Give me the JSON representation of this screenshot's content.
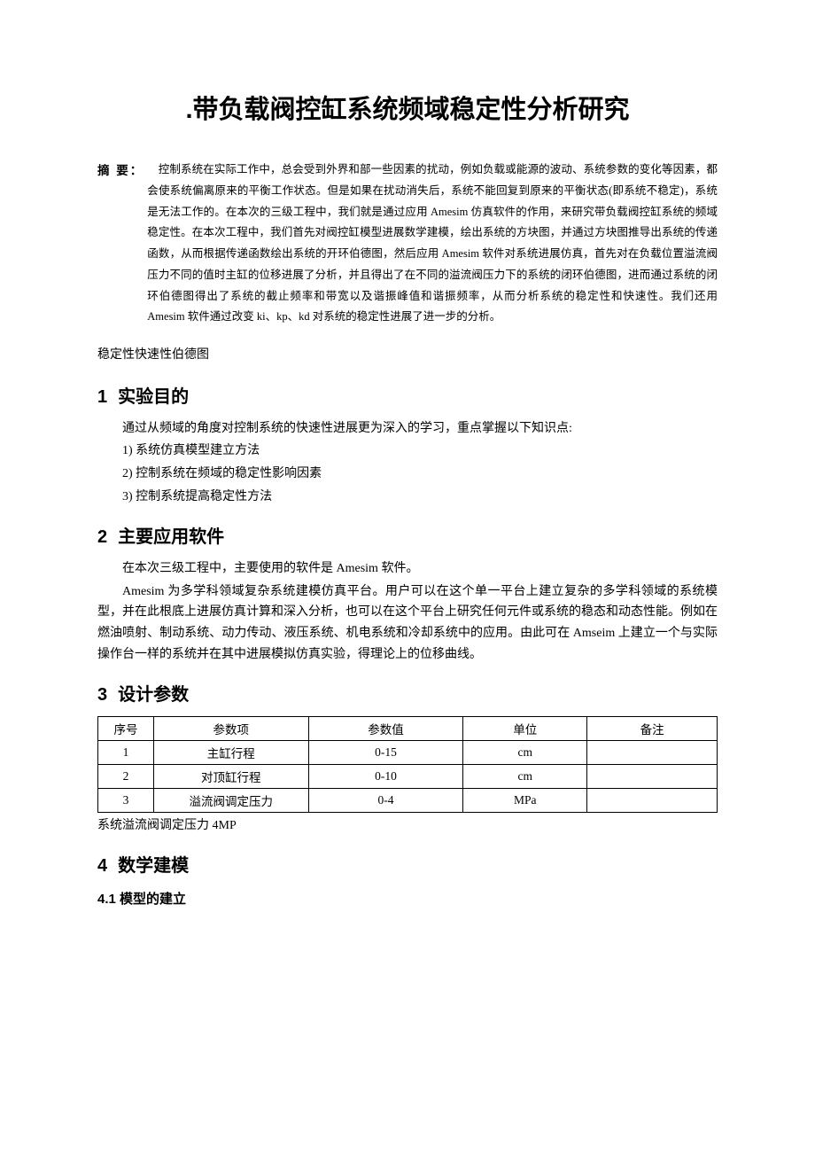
{
  "title": ".带负载阀控缸系统频域稳定性分析研究",
  "abstractLabel": "摘 要：",
  "abstractBody": "控制系统在实际工作中，总会受到外界和部一些因素的扰动，例如负载或能源的波动、系统参数的变化等因素，都会使系统偏离原来的平衡工作状态。但是如果在扰动消失后，系统不能回复到原来的平衡状态(即系统不稳定)，系统是无法工作的。在本次的三级工程中，我们就是通过应用 Amesim 仿真软件的作用，来研究带负载阀控缸系统的频域稳定性。在本次工程中，我们首先对阀控缸模型进展数学建模，绘出系统的方块图，并通过方块图推导出系统的传递函数，从而根据传递函数绘出系统的开环伯德图，然后应用 Amesim 软件对系统进展仿真，首先对在负载位置溢流阀压力不同的值时主缸的位移进展了分析，并且得出了在不同的溢流阀压力下的系统的闭环伯德图，进而通过系统的闭环伯德图得出了系统的截止频率和带宽以及谐振峰值和谐振频率，从而分析系统的稳定性和快速性。我们还用 Amesim 软件通过改变 ki、kp、kd 对系统的稳定性进展了进一步的分析。",
  "keywords": "稳定性快速性伯德图",
  "sections": {
    "s1": {
      "num": "1",
      "title": "实验目的"
    },
    "s2": {
      "num": "2",
      "title": "主要应用软件"
    },
    "s3": {
      "num": "3",
      "title": "设计参数"
    },
    "s4": {
      "num": "4",
      "title": "数学建模"
    }
  },
  "s1_intro": "通过从频域的角度对控制系统的快速性进展更为深入的学习，重点掌握以下知识点:",
  "s1_items": [
    "1)  系统仿真模型建立方法",
    "2)  控制系统在频域的稳定性影响因素",
    "3)  控制系统提高稳定性方法"
  ],
  "s2_p1": "在本次三级工程中，主要使用的软件是 Amesim 软件。",
  "s2_p2": "Amesim 为多学科领域复杂系统建模仿真平台。用户可以在这个单一平台上建立复杂的多学科领域的系统模型，并在此根底上进展仿真计算和深入分析，也可以在这个平台上研究任何元件或系统的稳态和动态性能。例如在燃油喷射、制动系统、动力传动、液压系统、机电系统和冷却系统中的应用。由此可在 Amseim 上建立一个与实际操作台一样的系统并在其中进展模拟仿真实验，得理论上的位移曲线。",
  "table": {
    "headers": [
      "序号",
      "参数项",
      "参数值",
      "单位",
      "备注"
    ],
    "col_widths": [
      "9%",
      "25%",
      "25%",
      "20%",
      "21%"
    ],
    "rows": [
      [
        "1",
        "主缸行程",
        "0-15",
        "cm",
        ""
      ],
      [
        "2",
        "对顶缸行程",
        "0-10",
        "cm",
        ""
      ],
      [
        "3",
        "溢流阀调定压力",
        "0-4",
        "MPa",
        ""
      ]
    ]
  },
  "table_note": "系统溢流阀调定压力 4MP",
  "sub4_1": "4.1 模型的建立"
}
